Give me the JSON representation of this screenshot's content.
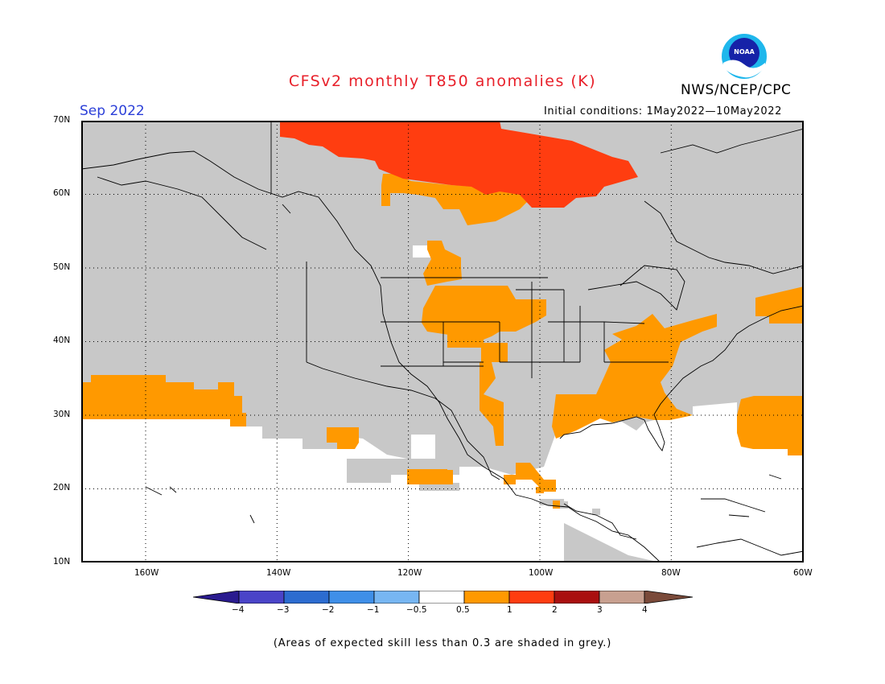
{
  "header": {
    "title": "CFSv2 monthly T850 anomalies (K)",
    "agency": "NWS/NCEP/CPC",
    "valid_month": "Sep 2022",
    "initial_conditions": "Initial conditions: 1May2022—10May2022",
    "logo_text": "NOAA"
  },
  "map": {
    "lat_labels": [
      "70N",
      "60N",
      "50N",
      "40N",
      "30N",
      "20N",
      "10N"
    ],
    "lon_labels": [
      "160W",
      "140W",
      "120W",
      "100W",
      "80W",
      "60W"
    ],
    "background_color": "#c8c8c8"
  },
  "legend": {
    "tick_labels": [
      "−4",
      "−3",
      "−2",
      "−1",
      "−0.5",
      "0.5",
      "1",
      "2",
      "3",
      "4"
    ],
    "colors": [
      "#2a1b8f",
      "#4a44c8",
      "#2c6cd0",
      "#3f8fe8",
      "#77b6f2",
      "#ffffff",
      "#ff9900",
      "#ff3d10",
      "#a90f0f",
      "#c8a090",
      "#7a4a3a"
    ]
  },
  "footnote": "(Areas of expected skill less than 0.3 are shaded in grey.)"
}
